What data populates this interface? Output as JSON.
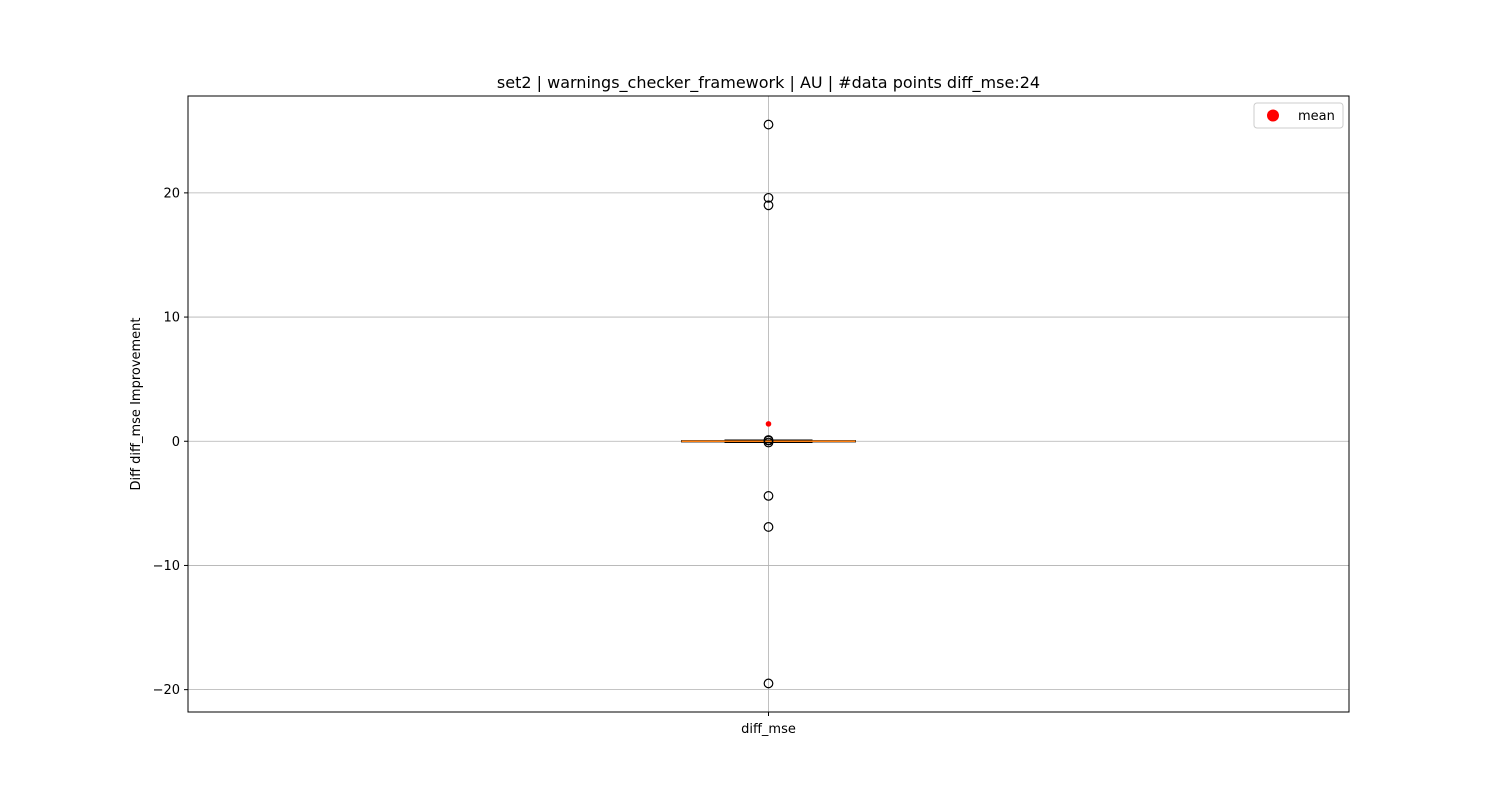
{
  "chart_data": {
    "type": "box",
    "title": "set2 | warnings_checker_framework | AU | #data points diff_mse:24",
    "xlabel": "",
    "ylabel": "Diff diff_mse Improvement",
    "categories": [
      "diff_mse"
    ],
    "ylim": [
      -21.8,
      27.8
    ],
    "yticks": [
      -20,
      -10,
      0,
      10,
      20
    ],
    "ytick_labels": [
      "−20",
      "−10",
      "0",
      "10",
      "20"
    ],
    "grid": true,
    "legend": {
      "placement": "top-right",
      "entries": [
        {
          "label": "mean",
          "marker": "red-dot"
        }
      ]
    },
    "box": {
      "q1": -0.05,
      "median": 0.0,
      "q3": 0.05,
      "whisker_low": -0.1,
      "whisker_high": 0.1,
      "mean": 1.4,
      "outliers": [
        25.5,
        19.6,
        19.0,
        0.1,
        0.05,
        -0.1,
        -4.4,
        -6.9,
        -19.5
      ]
    },
    "colors": {
      "median": "#ff7f0e",
      "mean": "#ff0000",
      "grid": "#b0b0b0",
      "outlier_edge": "#000000"
    }
  }
}
